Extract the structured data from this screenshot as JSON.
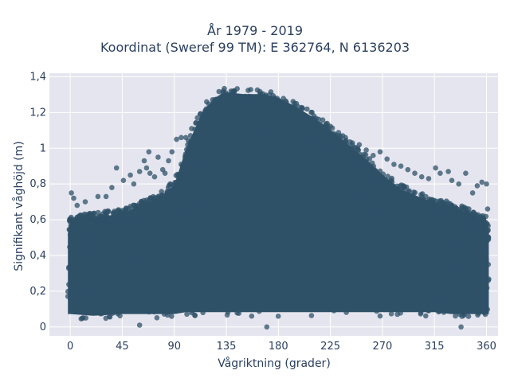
{
  "chart_data": {
    "type": "scatter",
    "title_lines": [
      "År 1979 - 2019",
      "Koordinat (Sweref 99 TM): E 362764, N 6136203"
    ],
    "xlabel": "Vågriktning (grader)",
    "ylabel": "Signifikant våghöjd (m)",
    "xlim": [
      -18,
      370
    ],
    "ylim": [
      -0.05,
      1.42
    ],
    "xticks": [
      0,
      45,
      90,
      135,
      180,
      225,
      270,
      315,
      360
    ],
    "xtick_labels": [
      "0",
      "45",
      "90",
      "135",
      "180",
      "225",
      "270",
      "315",
      "360"
    ],
    "yticks": [
      0,
      0.2,
      0.4,
      0.6,
      0.8,
      1.0,
      1.2,
      1.4
    ],
    "ytick_labels": [
      "0",
      "0,2",
      "0,4",
      "0,6",
      "0,8",
      "1",
      "1,2",
      "1,4"
    ],
    "grid": true,
    "marker_color": "#2f5168",
    "background_color": "#e5e5ef",
    "envelope": {
      "x": [
        -2,
        0,
        20,
        45,
        60,
        75,
        90,
        100,
        115,
        130,
        135,
        150,
        165,
        180,
        195,
        210,
        225,
        240,
        255,
        270,
        285,
        300,
        315,
        330,
        345,
        360,
        362
      ],
      "y_upper": [
        0.55,
        0.62,
        0.64,
        0.66,
        0.7,
        0.74,
        0.82,
        1.02,
        1.24,
        1.33,
        1.34,
        1.33,
        1.33,
        1.31,
        1.26,
        1.2,
        1.13,
        1.05,
        0.97,
        0.88,
        0.8,
        0.76,
        0.72,
        0.7,
        0.66,
        0.62,
        0.55
      ],
      "y_lower": [
        0.05,
        0.05,
        0.04,
        0.05,
        0.05,
        0.05,
        0.05,
        0.06,
        0.06,
        0.06,
        0.06,
        0.06,
        0.06,
        0.06,
        0.06,
        0.06,
        0.06,
        0.06,
        0.06,
        0.06,
        0.06,
        0.06,
        0.06,
        0.05,
        0.05,
        0.05,
        0.05
      ]
    },
    "outliers": [
      {
        "x": 1,
        "y": 0.75
      },
      {
        "x": 3,
        "y": 0.72
      },
      {
        "x": 6,
        "y": 0.68
      },
      {
        "x": 13,
        "y": 0.7
      },
      {
        "x": 24,
        "y": 0.73
      },
      {
        "x": 31,
        "y": 0.73
      },
      {
        "x": 36,
        "y": 0.78
      },
      {
        "x": 40,
        "y": 0.89
      },
      {
        "x": 46,
        "y": 0.82
      },
      {
        "x": 52,
        "y": 0.85
      },
      {
        "x": 55,
        "y": 0.8
      },
      {
        "x": 60,
        "y": 0.87
      },
      {
        "x": 64,
        "y": 0.93
      },
      {
        "x": 66,
        "y": 0.89
      },
      {
        "x": 69,
        "y": 0.86
      },
      {
        "x": 68,
        "y": 0.98
      },
      {
        "x": 73,
        "y": 0.84
      },
      {
        "x": 76,
        "y": 0.95
      },
      {
        "x": 80,
        "y": 0.88
      },
      {
        "x": 82,
        "y": 0.86
      },
      {
        "x": 85,
        "y": 0.93
      },
      {
        "x": 88,
        "y": 0.98
      },
      {
        "x": 92,
        "y": 1.05
      },
      {
        "x": 96,
        "y": 1.06
      },
      {
        "x": 100,
        "y": 1.06
      },
      {
        "x": 105,
        "y": 1.11
      },
      {
        "x": 110,
        "y": 1.17
      },
      {
        "x": 118,
        "y": 1.26
      },
      {
        "x": 238,
        "y": 1.06
      },
      {
        "x": 244,
        "y": 1.03
      },
      {
        "x": 250,
        "y": 1.02
      },
      {
        "x": 256,
        "y": 0.99
      },
      {
        "x": 262,
        "y": 0.96
      },
      {
        "x": 268,
        "y": 0.98
      },
      {
        "x": 274,
        "y": 0.94
      },
      {
        "x": 280,
        "y": 0.91
      },
      {
        "x": 286,
        "y": 0.9
      },
      {
        "x": 292,
        "y": 0.88
      },
      {
        "x": 298,
        "y": 0.86
      },
      {
        "x": 304,
        "y": 0.84
      },
      {
        "x": 310,
        "y": 0.83
      },
      {
        "x": 316,
        "y": 0.89
      },
      {
        "x": 320,
        "y": 0.86
      },
      {
        "x": 327,
        "y": 0.87
      },
      {
        "x": 330,
        "y": 0.82
      },
      {
        "x": 336,
        "y": 0.8
      },
      {
        "x": 342,
        "y": 0.86
      },
      {
        "x": 348,
        "y": 0.75
      },
      {
        "x": 352,
        "y": 0.79
      },
      {
        "x": 356,
        "y": 0.81
      },
      {
        "x": 360,
        "y": 0.8
      },
      {
        "x": 361,
        "y": 0.66
      },
      {
        "x": 170,
        "y": 0.0
      },
      {
        "x": 338,
        "y": 0.0
      },
      {
        "x": 60,
        "y": 0.01
      }
    ]
  }
}
